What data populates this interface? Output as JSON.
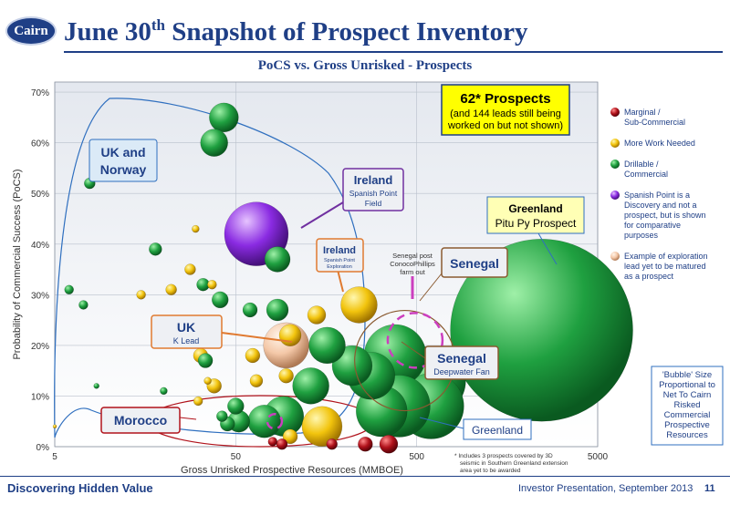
{
  "header": {
    "logo_text": "Cairn",
    "title_main": "June 30",
    "title_sup": "th",
    "title_rest": " Snapshot of Prospect Inventory",
    "subtitle": "PoCS vs. Gross Unrisked  -  Prospects"
  },
  "footer": {
    "left": "Discovering Hidden Value",
    "right": "Investor Presentation, September 2013",
    "page": "11"
  },
  "chart_data": {
    "type": "scatter",
    "xlabel": "Gross Unrisked Prospective Resources  (MMBOE)",
    "ylabel": "Probability of Commercial Success (PoCS)",
    "x_scale": "log",
    "xlim": [
      5,
      5000
    ],
    "ylim": [
      0,
      72
    ],
    "x_ticks": [
      {
        "v": 5,
        "label": "5"
      },
      {
        "v": 50,
        "label": "50"
      },
      {
        "v": 500,
        "label": "500"
      },
      {
        "v": 5000,
        "label": "5000"
      }
    ],
    "y_ticks": [
      {
        "v": 0,
        "label": "0%"
      },
      {
        "v": 10,
        "label": "10%"
      },
      {
        "v": 20,
        "label": "20%"
      },
      {
        "v": 30,
        "label": "30%"
      },
      {
        "v": 40,
        "label": "40%"
      },
      {
        "v": 50,
        "label": "50%"
      },
      {
        "v": 60,
        "label": "60%"
      },
      {
        "v": 70,
        "label": "70%"
      }
    ],
    "categories": [
      {
        "key": "marginal",
        "name": "Marginal / Sub-Commercial",
        "color": "#b0121b"
      },
      {
        "key": "work",
        "name": "More Work Needed",
        "color": "#f2c40d"
      },
      {
        "key": "drillable",
        "name": "Drillable / Commercial",
        "color": "#1fa040"
      },
      {
        "key": "spanish",
        "name": "Spanish Point is a Discovery and not a prospect, but is shown for comparative purposes",
        "color": "#8a2be2"
      },
      {
        "key": "example",
        "name": "Example of exploration lead yet to be matured as a prospect",
        "color": "#f4c8a8"
      }
    ],
    "points": [
      {
        "x": 5,
        "y": 4,
        "c": "work",
        "r": 2
      },
      {
        "x": 6,
        "y": 31,
        "c": "drillable",
        "r": 5
      },
      {
        "x": 7.2,
        "y": 28,
        "c": "drillable",
        "r": 5
      },
      {
        "x": 7.8,
        "y": 52,
        "c": "drillable",
        "r": 6
      },
      {
        "x": 8.5,
        "y": 12,
        "c": "drillable",
        "r": 3
      },
      {
        "x": 15,
        "y": 30,
        "c": "work",
        "r": 5
      },
      {
        "x": 18,
        "y": 39,
        "c": "drillable",
        "r": 7
      },
      {
        "x": 20,
        "y": 11,
        "c": "drillable",
        "r": 4
      },
      {
        "x": 22,
        "y": 31,
        "c": "work",
        "r": 6
      },
      {
        "x": 28,
        "y": 35,
        "c": "work",
        "r": 6
      },
      {
        "x": 30,
        "y": 43,
        "c": "work",
        "r": 4
      },
      {
        "x": 31,
        "y": 9,
        "c": "work",
        "r": 5
      },
      {
        "x": 32,
        "y": 22,
        "c": "work",
        "r": 6
      },
      {
        "x": 32,
        "y": 18,
        "c": "work",
        "r": 8
      },
      {
        "x": 33,
        "y": 32,
        "c": "drillable",
        "r": 7
      },
      {
        "x": 34,
        "y": 17,
        "c": "drillable",
        "r": 8
      },
      {
        "x": 35,
        "y": 13,
        "c": "work",
        "r": 4
      },
      {
        "x": 37,
        "y": 32,
        "c": "work",
        "r": 5
      },
      {
        "x": 38,
        "y": 12,
        "c": "work",
        "r": 8
      },
      {
        "x": 38,
        "y": 60,
        "c": "drillable",
        "r": 15
      },
      {
        "x": 41,
        "y": 29,
        "c": "drillable",
        "r": 9
      },
      {
        "x": 43,
        "y": 65,
        "c": "drillable",
        "r": 16
      },
      {
        "x": 42,
        "y": 6,
        "c": "drillable",
        "r": 6
      },
      {
        "x": 45,
        "y": 4.5,
        "c": "drillable",
        "r": 8
      },
      {
        "x": 50,
        "y": 8,
        "c": "drillable",
        "r": 9
      },
      {
        "x": 52,
        "y": 5,
        "c": "drillable",
        "r": 12
      },
      {
        "x": 60,
        "y": 27,
        "c": "drillable",
        "r": 8
      },
      {
        "x": 62,
        "y": 18,
        "c": "work",
        "r": 8
      },
      {
        "x": 65,
        "y": 13,
        "c": "work",
        "r": 7
      },
      {
        "x": 72,
        "y": 5,
        "c": "drillable",
        "r": 18
      },
      {
        "x": 80,
        "y": 1,
        "c": "marginal",
        "r": 5
      },
      {
        "x": 85,
        "y": 37,
        "c": "drillable",
        "r": 14
      },
      {
        "x": 85,
        "y": 27,
        "c": "drillable",
        "r": 12
      },
      {
        "x": 90,
        "y": 0.5,
        "c": "marginal",
        "r": 6
      },
      {
        "x": 92,
        "y": 6,
        "c": "drillable",
        "r": 22
      },
      {
        "x": 95,
        "y": 14,
        "c": "work",
        "r": 8
      },
      {
        "x": 100,
        "y": 2,
        "c": "work",
        "r": 8
      },
      {
        "x": 100,
        "y": 22,
        "c": "work",
        "r": 12
      },
      {
        "x": 130,
        "y": 12,
        "c": "drillable",
        "r": 20
      },
      {
        "x": 140,
        "y": 26,
        "c": "work",
        "r": 10
      },
      {
        "x": 150,
        "y": 4,
        "c": "work",
        "r": 22
      },
      {
        "x": 160,
        "y": 20,
        "c": "drillable",
        "r": 20
      },
      {
        "x": 170,
        "y": 0.5,
        "c": "marginal",
        "r": 6
      },
      {
        "x": 220,
        "y": 16,
        "c": "drillable",
        "r": 22
      },
      {
        "x": 240,
        "y": 28,
        "c": "work",
        "r": 20
      },
      {
        "x": 260,
        "y": 0.5,
        "c": "marginal",
        "r": 8
      },
      {
        "x": 280,
        "y": 14,
        "c": "drillable",
        "r": 26
      },
      {
        "x": 320,
        "y": 7,
        "c": "drillable",
        "r": 28
      },
      {
        "x": 350,
        "y": 0.5,
        "c": "marginal",
        "r": 10
      },
      {
        "x": 380,
        "y": 18,
        "c": "drillable",
        "r": 34
      },
      {
        "x": 400,
        "y": 8,
        "c": "drillable",
        "r": 34
      },
      {
        "x": 600,
        "y": 8,
        "c": "drillable",
        "r": 36
      },
      {
        "x": 600,
        "y": 13,
        "c": "drillable",
        "r": 38
      },
      {
        "x": 95,
        "y": 20,
        "c": "example",
        "r": 25
      },
      {
        "x": 65,
        "y": 42,
        "c": "spanish",
        "r": 35
      },
      {
        "x": 2450,
        "y": 23,
        "c": "drillable",
        "r": 100
      }
    ],
    "dashed_circles": [
      {
        "x": 490,
        "y": 21,
        "r": 30
      },
      {
        "x": 82,
        "y": 5,
        "r": 8
      }
    ],
    "big_outline_circle": {
      "x": 430,
      "y": 17,
      "r": 55
    },
    "text_boxes": {
      "prospects_title": "62* Prospects",
      "prospects_note_1": "(and 144 leads still being",
      "prospects_note_2": "worked on but not shown)",
      "uk_norway_1": "UK and",
      "uk_norway_2": "Norway",
      "ireland_title": "Ireland",
      "ireland_sub_1": "Spanish Point",
      "ireland_sub_2": "Field",
      "ireland2_title": "Ireland",
      "ireland2_sub_1": "Spanish Point",
      "ireland2_sub_2": "Exploration",
      "greenland_pitu_title": "Greenland",
      "greenland_pitu_sub": "Pitu Py Prospect",
      "senegal_post_1": "Senegal post",
      "senegal_post_2": "ConocoPhillips",
      "senegal_post_3": "farm out",
      "senegal": "Senegal",
      "uk_k": "UK",
      "uk_k_sub": "K Lead",
      "senegal_deep_title": "Senegal",
      "senegal_deep_sub": "Deepwater Fan",
      "morocco": "Morocco",
      "greenland": "Greenland",
      "bubble_note_1": "'Bubble' Size",
      "bubble_note_2": "Proportional to",
      "bubble_note_3": "Net To Cairn",
      "bubble_note_4": "Risked",
      "bubble_note_5": "Commercial",
      "bubble_note_6": "Prospective",
      "bubble_note_7": "Resources",
      "footnote_1": "*  Includes 3 prospects covered by 3D",
      "footnote_2": "seismic in Southern Greenland extension",
      "footnote_3": "area yet to be awarded"
    },
    "legend_lines": {
      "marginal": [
        "Marginal /",
        "Sub-Commercial"
      ],
      "work": [
        "More Work Needed"
      ],
      "drillable": [
        "Drillable /",
        "Commercial"
      ],
      "spanish": [
        "Spanish Point is a",
        "Discovery and not a",
        "prospect, but is shown",
        "for comparative",
        "purposes"
      ],
      "example": [
        "Example of exploration",
        "lead yet to be matured",
        "as a prospect"
      ]
    }
  }
}
